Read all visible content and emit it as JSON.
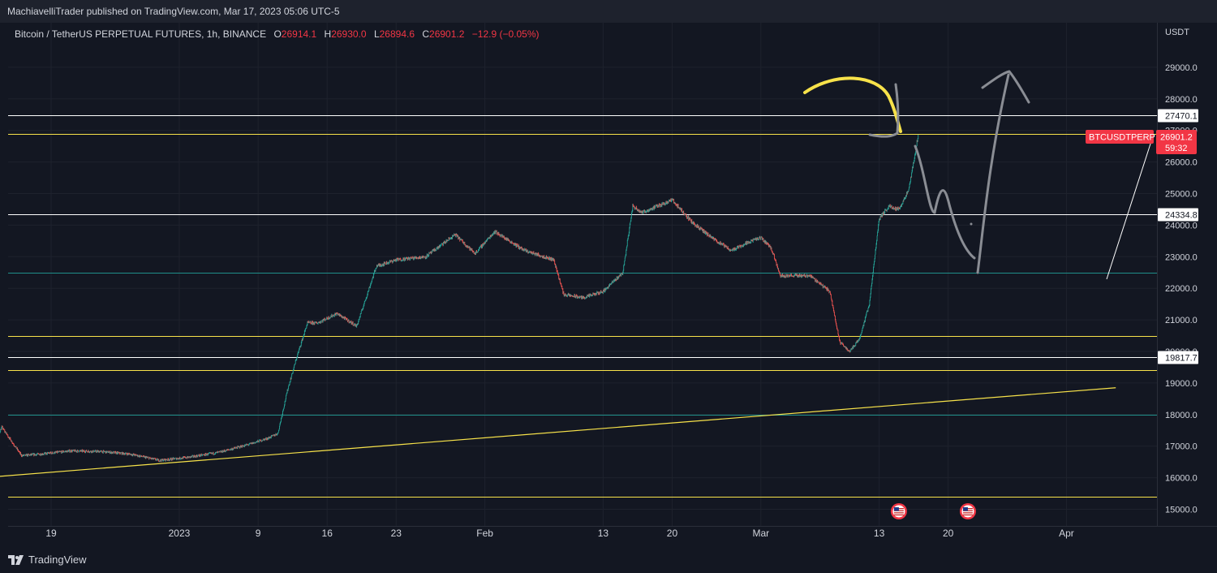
{
  "header": {
    "published_by": "MachiavelliTrader published on TradingView.com, Mar 17, 2023 05:06 UTC-5"
  },
  "legend": {
    "symbol": "Bitcoin / TetherUS PERPETUAL FUTURES, 1h, BINANCE",
    "open_label": "O",
    "open": "26914.1",
    "high_label": "H",
    "high": "26930.0",
    "low_label": "L",
    "low": "26894.6",
    "close_label": "C",
    "close": "26901.2",
    "change": "−12.9 (−0.05%)"
  },
  "axis_currency": "USDT",
  "price_tag": {
    "ticker": "BTCUSDTPERP",
    "price": "26901.2",
    "countdown": "59:32"
  },
  "footer": {
    "brand": "TradingView"
  },
  "colors": {
    "up": "#26a69a",
    "down": "#ef5350",
    "yellow_line": "#f7e24a",
    "teal_line": "#1f8f8a",
    "white_line": "#ffffff",
    "tag_red": "#f23645",
    "background": "#131722"
  },
  "chart_data": {
    "type": "candlestick",
    "symbol": "BTCUSDTPERP",
    "timeframe": "1h",
    "ylim": [
      14700,
      30000
    ],
    "y_ticks": [
      15000,
      16000,
      17000,
      18000,
      19000,
      20000,
      21000,
      22000,
      23000,
      24000,
      25000,
      26000,
      27000,
      28000,
      29000
    ],
    "y_tick_labels": [
      "15000.0",
      "16000.0",
      "17000.0",
      "18000.0",
      "19000.0",
      "20000.0",
      "21000.0",
      "22000.0",
      "23000.0",
      "24000.0",
      "25000.0",
      "26000.0",
      "27000.0",
      "28000.0",
      "29000.0"
    ],
    "x_ticks": [
      {
        "label": "19",
        "date": "2022-12-19"
      },
      {
        "label": "2023",
        "date": "2023-01-01"
      },
      {
        "label": "9",
        "date": "2023-01-09"
      },
      {
        "label": "16",
        "date": "2023-01-16"
      },
      {
        "label": "23",
        "date": "2023-01-23"
      },
      {
        "label": "Feb",
        "date": "2023-02-01"
      },
      {
        "label": "13",
        "date": "2023-02-13"
      },
      {
        "label": "20",
        "date": "2023-02-20"
      },
      {
        "label": "Mar",
        "date": "2023-03-01"
      },
      {
        "label": "13",
        "date": "2023-03-13"
      },
      {
        "label": "20",
        "date": "2023-03-20"
      },
      {
        "label": "Apr",
        "date": "2023-04-01"
      }
    ],
    "price_path": [
      [
        "2022-12-12",
        16200
      ],
      [
        "2022-12-14",
        17600
      ],
      [
        "2022-12-16",
        16700
      ],
      [
        "2022-12-18",
        16750
      ],
      [
        "2022-12-21",
        16850
      ],
      [
        "2022-12-24",
        16830
      ],
      [
        "2022-12-27",
        16750
      ],
      [
        "2022-12-30",
        16550
      ],
      [
        "2023-01-02",
        16650
      ],
      [
        "2023-01-05",
        16800
      ],
      [
        "2023-01-08",
        17050
      ],
      [
        "2023-01-10",
        17250
      ],
      [
        "2023-01-11",
        17400
      ],
      [
        "2023-01-12",
        18800
      ],
      [
        "2023-01-13",
        19900
      ],
      [
        "2023-01-14",
        20900
      ],
      [
        "2023-01-15",
        20900
      ],
      [
        "2023-01-17",
        21200
      ],
      [
        "2023-01-19",
        20800
      ],
      [
        "2023-01-21",
        22700
      ],
      [
        "2023-01-23",
        22900
      ],
      [
        "2023-01-26",
        23000
      ],
      [
        "2023-01-29",
        23700
      ],
      [
        "2023-01-31",
        23100
      ],
      [
        "2023-02-02",
        23800
      ],
      [
        "2023-02-05",
        23200
      ],
      [
        "2023-02-08",
        22900
      ],
      [
        "2023-02-09",
        21800
      ],
      [
        "2023-02-11",
        21700
      ],
      [
        "2023-02-13",
        21900
      ],
      [
        "2023-02-15",
        22500
      ],
      [
        "2023-02-16",
        24600
      ],
      [
        "2023-02-17",
        24400
      ],
      [
        "2023-02-20",
        24800
      ],
      [
        "2023-02-22",
        24100
      ],
      [
        "2023-02-24",
        23600
      ],
      [
        "2023-02-26",
        23200
      ],
      [
        "2023-02-28",
        23500
      ],
      [
        "2023-03-01",
        23600
      ],
      [
        "2023-03-02",
        23300
      ],
      [
        "2023-03-03",
        22400
      ],
      [
        "2023-03-06",
        22400
      ],
      [
        "2023-03-08",
        21900
      ],
      [
        "2023-03-09",
        20300
      ],
      [
        "2023-03-10",
        20000
      ],
      [
        "2023-03-11",
        20400
      ],
      [
        "2023-03-12",
        21500
      ],
      [
        "2023-03-13",
        24200
      ],
      [
        "2023-03-14",
        24600
      ],
      [
        "2023-03-15",
        24500
      ],
      [
        "2023-03-16",
        25100
      ],
      [
        "2023-03-17",
        26901.2
      ]
    ],
    "horizontal_levels": [
      {
        "price": 27470.1,
        "color": "white",
        "label": "27470.1"
      },
      {
        "price": 26901.2,
        "color": "yellow"
      },
      {
        "price": 24334.8,
        "color": "white",
        "label": "24334.8"
      },
      {
        "price": 22500,
        "color": "teal"
      },
      {
        "price": 20500,
        "color": "yellow"
      },
      {
        "price": 19817.7,
        "color": "white",
        "label": "19817.7"
      },
      {
        "price": 19400,
        "color": "yellow"
      },
      {
        "price": 18000,
        "color": "teal"
      },
      {
        "price": 15400,
        "color": "yellow"
      }
    ],
    "trendline": {
      "from": [
        "2022-12-12",
        16000
      ],
      "to": [
        "2023-04-06",
        18850
      ]
    },
    "event_markers": [
      {
        "date": "2023-03-15"
      },
      {
        "date": "2023-03-22"
      }
    ]
  }
}
